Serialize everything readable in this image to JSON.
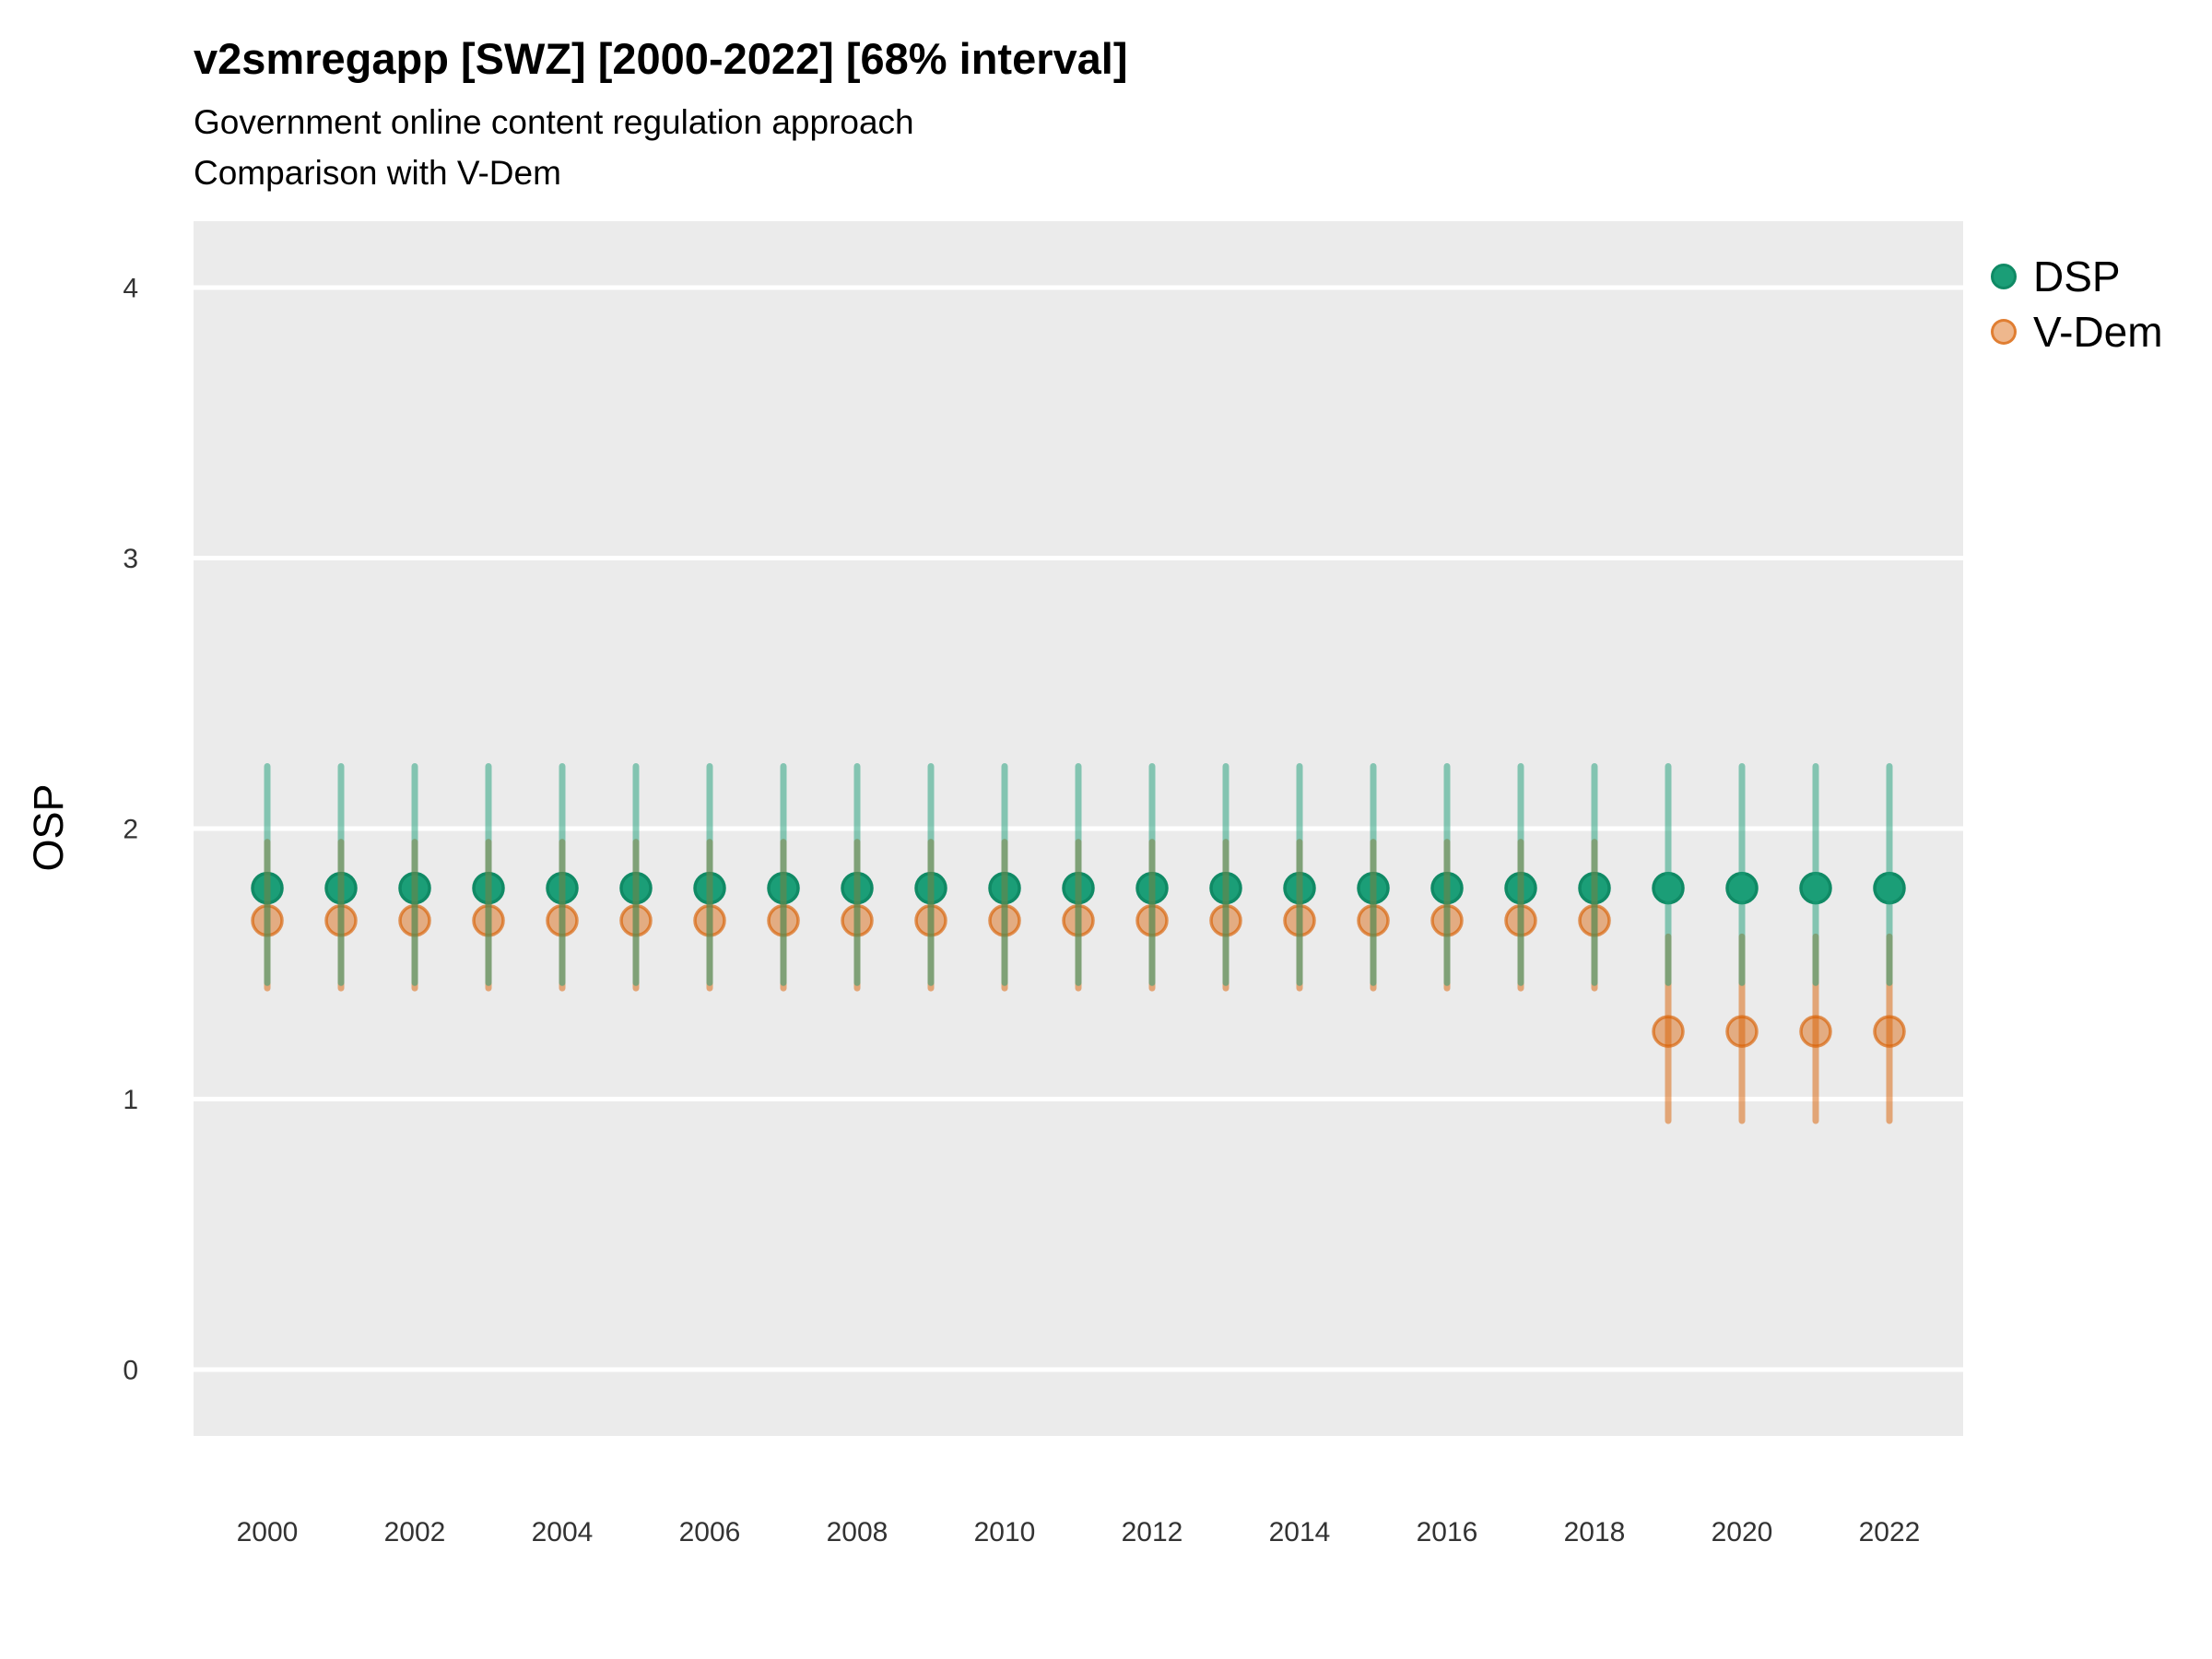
{
  "chart_data": {
    "type": "pointrange",
    "title": "v2smregapp [SWZ] [2000-2022] [68% interval]",
    "subtitle": [
      "Government online content regulation approach",
      "Comparison with V-Dem"
    ],
    "ylabel": "OSP",
    "interval_label": "68% interval",
    "grid": "major-y-only",
    "legend_position": "right",
    "x": [
      2000,
      2001,
      2002,
      2003,
      2004,
      2005,
      2006,
      2007,
      2008,
      2009,
      2010,
      2011,
      2012,
      2013,
      2014,
      2015,
      2016,
      2017,
      2018,
      2019,
      2020,
      2021,
      2022
    ],
    "x_tick_labels": [
      "2000",
      "2002",
      "2004",
      "2006",
      "2008",
      "2010",
      "2012",
      "2014",
      "2016",
      "2018",
      "2020",
      "2022"
    ],
    "y_ticks": [
      0,
      1,
      2,
      3,
      4
    ],
    "ylim": [
      -0.25,
      4.25
    ],
    "series": [
      {
        "name": "DSP",
        "color": "#1B9E77",
        "values": [
          1.78,
          1.78,
          1.78,
          1.78,
          1.78,
          1.78,
          1.78,
          1.78,
          1.78,
          1.78,
          1.78,
          1.78,
          1.78,
          1.78,
          1.78,
          1.78,
          1.78,
          1.78,
          1.78,
          1.78,
          1.78,
          1.78,
          1.78
        ],
        "lo": [
          1.43,
          1.43,
          1.43,
          1.43,
          1.43,
          1.43,
          1.43,
          1.43,
          1.43,
          1.43,
          1.43,
          1.43,
          1.43,
          1.43,
          1.43,
          1.43,
          1.43,
          1.43,
          1.43,
          1.43,
          1.43,
          1.43,
          1.43
        ],
        "hi": [
          2.23,
          2.23,
          2.23,
          2.23,
          2.23,
          2.23,
          2.23,
          2.23,
          2.23,
          2.23,
          2.23,
          2.23,
          2.23,
          2.23,
          2.23,
          2.23,
          2.23,
          2.23,
          2.23,
          2.23,
          2.23,
          2.23,
          2.23
        ]
      },
      {
        "name": "V-Dem",
        "color": "#D95F02",
        "values": [
          1.66,
          1.66,
          1.66,
          1.66,
          1.66,
          1.66,
          1.66,
          1.66,
          1.66,
          1.66,
          1.66,
          1.66,
          1.66,
          1.66,
          1.66,
          1.66,
          1.66,
          1.66,
          1.66,
          1.25,
          1.25,
          1.25,
          1.25
        ],
        "lo": [
          1.41,
          1.41,
          1.41,
          1.41,
          1.41,
          1.41,
          1.41,
          1.41,
          1.41,
          1.41,
          1.41,
          1.41,
          1.41,
          1.41,
          1.41,
          1.41,
          1.41,
          1.41,
          1.41,
          0.92,
          0.92,
          0.92,
          0.92
        ],
        "hi": [
          1.95,
          1.95,
          1.95,
          1.95,
          1.95,
          1.95,
          1.95,
          1.95,
          1.95,
          1.95,
          1.95,
          1.95,
          1.95,
          1.95,
          1.95,
          1.95,
          1.95,
          1.95,
          1.95,
          1.6,
          1.6,
          1.6,
          1.6
        ]
      }
    ],
    "colors": {
      "panel_bg": "#EBEBEB",
      "gridline": "#FFFFFF",
      "dsp": "#1B9E77",
      "dsp_point_stroke": "#108A65",
      "vdem": "#D95F02",
      "tick_text": "#333333",
      "line_alpha": 0.5,
      "vdem_fill_alpha": 0.45,
      "vdem_stroke_alpha": 0.65
    }
  }
}
